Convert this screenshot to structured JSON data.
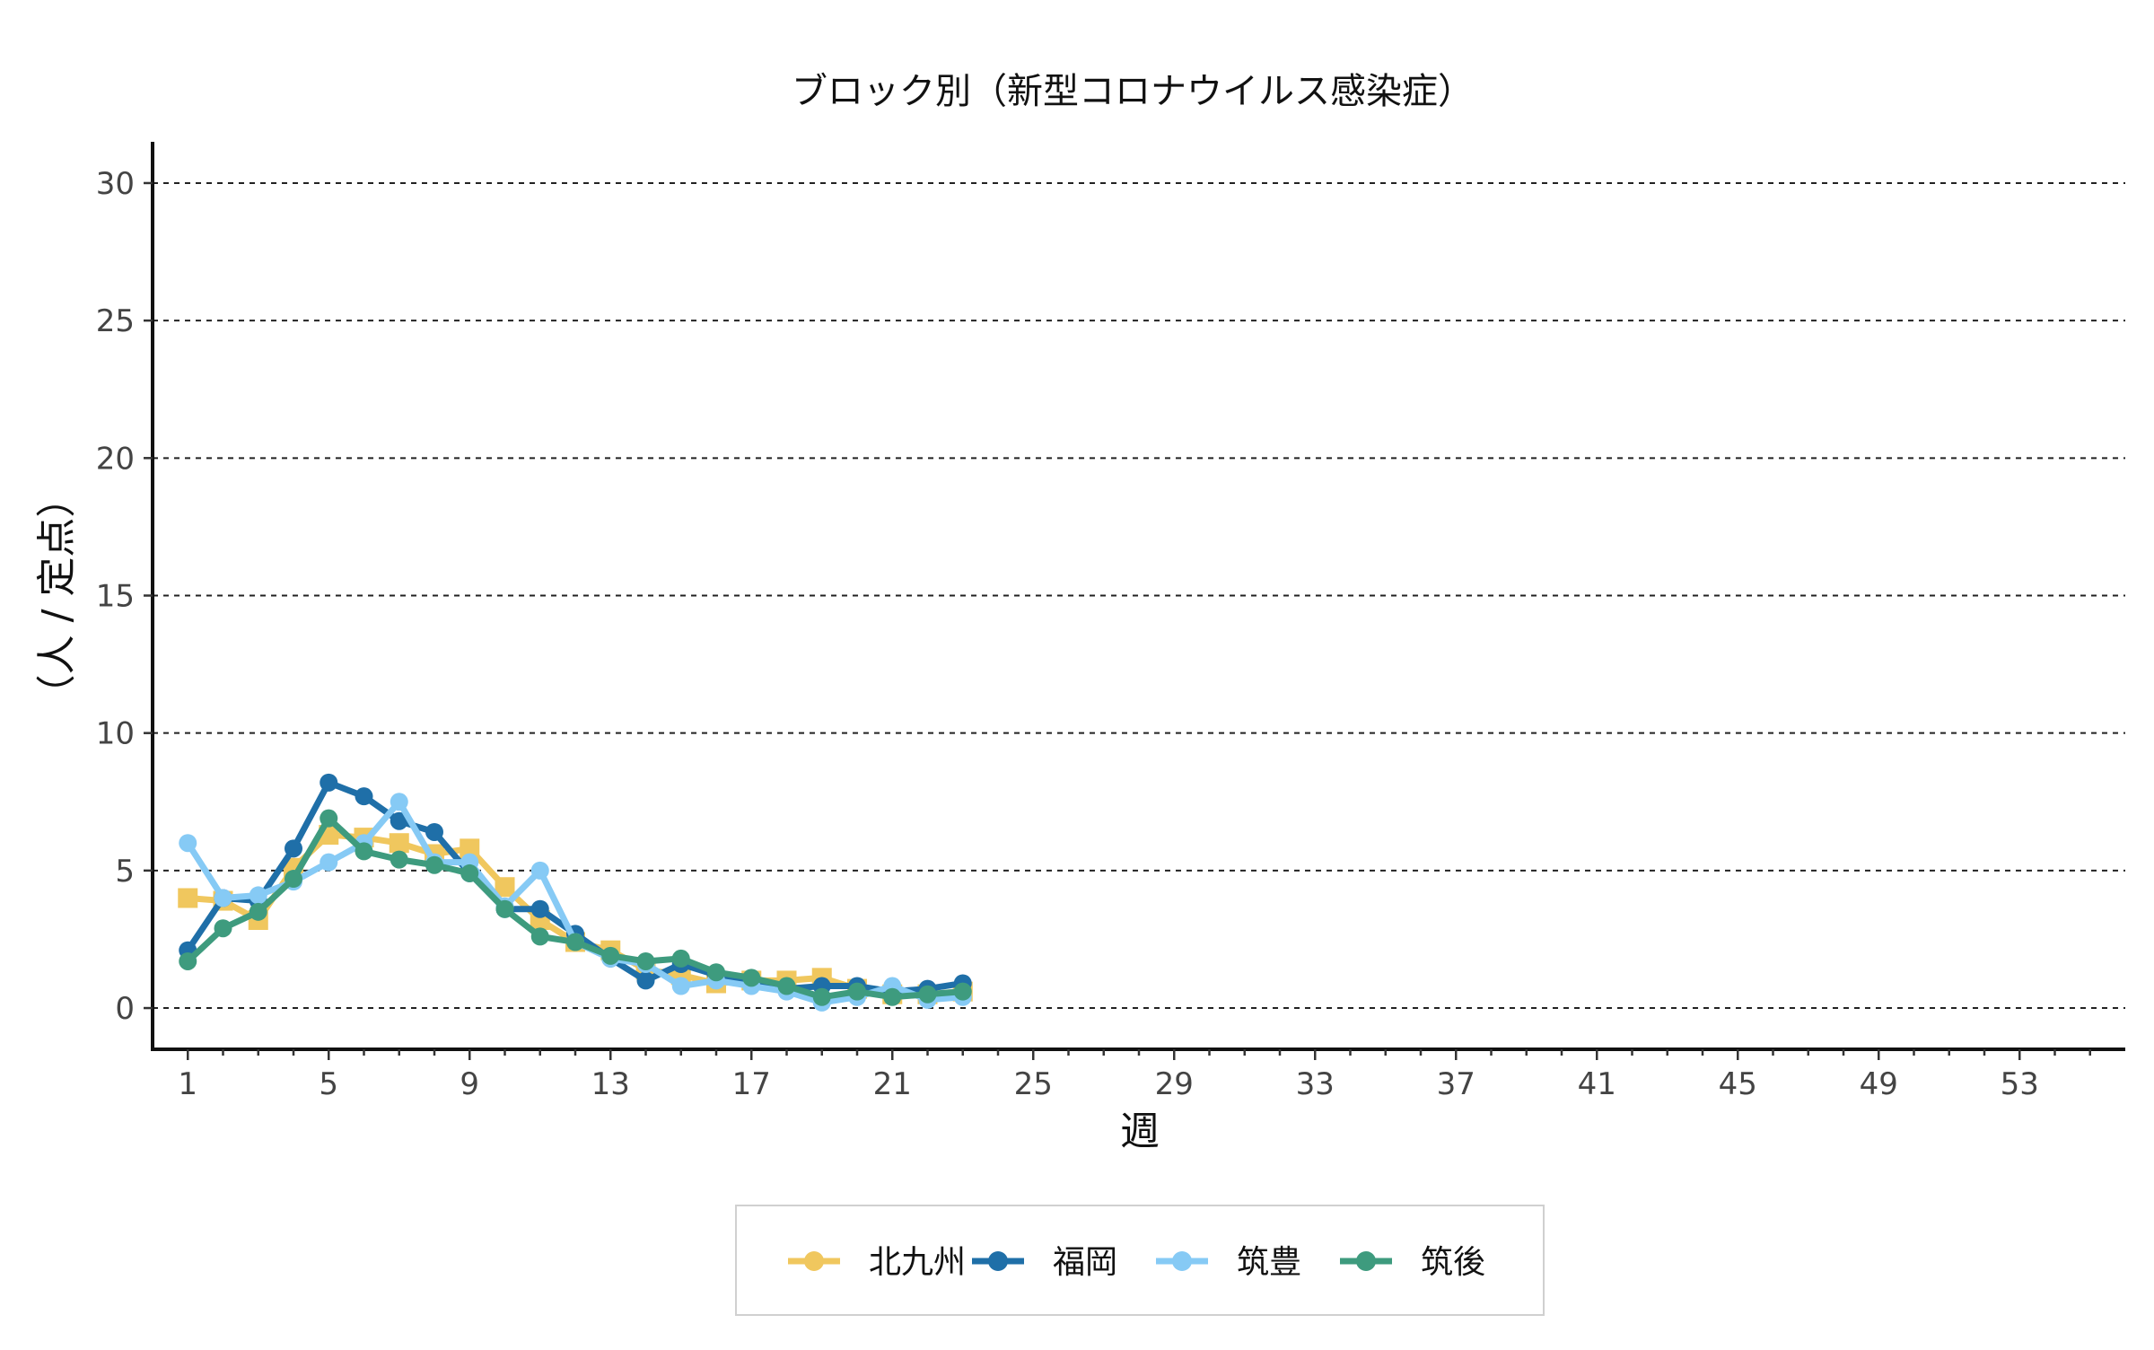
{
  "chart_data": {
    "type": "line",
    "title": "ブロック別（新型コロナウイルス感染症）",
    "xlabel": "週",
    "ylabel": "（人 / 定点）",
    "xlim": [
      0,
      56
    ],
    "ylim": [
      -1.5,
      31.5
    ],
    "x_ticks": [
      1,
      5,
      9,
      13,
      17,
      21,
      25,
      29,
      33,
      37,
      41,
      45,
      49,
      53
    ],
    "y_ticks": [
      0,
      5,
      10,
      15,
      20,
      25,
      30
    ],
    "grid": "horizontal dashed",
    "legend_position": "bottom",
    "x": [
      1,
      2,
      3,
      4,
      5,
      6,
      7,
      8,
      9,
      10,
      11,
      12,
      13,
      14,
      15,
      16,
      17,
      18,
      19,
      20,
      21,
      22,
      23
    ],
    "series": [
      {
        "name": "北九州",
        "color": "#F0C75E",
        "marker": "square",
        "values": [
          4.0,
          3.9,
          3.2,
          5.1,
          6.3,
          6.2,
          6.0,
          5.6,
          5.8,
          4.4,
          3.2,
          2.4,
          2.1,
          1.4,
          1.2,
          0.9,
          1.0,
          1.0,
          1.1,
          0.7,
          0.5,
          0.5,
          0.6
        ]
      },
      {
        "name": "福岡",
        "color": "#1F6FA8",
        "marker": "circle",
        "values": [
          2.1,
          4.0,
          3.9,
          5.8,
          8.2,
          7.7,
          6.8,
          6.4,
          4.9,
          3.6,
          3.6,
          2.7,
          1.8,
          1.0,
          1.6,
          1.2,
          1.0,
          0.7,
          0.8,
          0.8,
          0.6,
          0.7,
          0.9
        ]
      },
      {
        "name": "筑豊",
        "color": "#86CAF5",
        "marker": "circle",
        "values": [
          6.0,
          4.0,
          4.1,
          4.6,
          5.3,
          6.0,
          7.5,
          5.3,
          5.3,
          3.7,
          5.0,
          2.4,
          1.8,
          1.6,
          0.8,
          1.0,
          0.8,
          0.6,
          0.2,
          0.4,
          0.8,
          0.3,
          0.4
        ]
      },
      {
        "name": "筑後",
        "color": "#3E9B7E",
        "marker": "circle",
        "values": [
          1.7,
          2.9,
          3.5,
          4.7,
          6.9,
          5.7,
          5.4,
          5.2,
          4.9,
          3.6,
          2.6,
          2.4,
          1.9,
          1.7,
          1.8,
          1.3,
          1.1,
          0.8,
          0.4,
          0.6,
          0.4,
          0.5,
          0.6
        ]
      }
    ]
  }
}
